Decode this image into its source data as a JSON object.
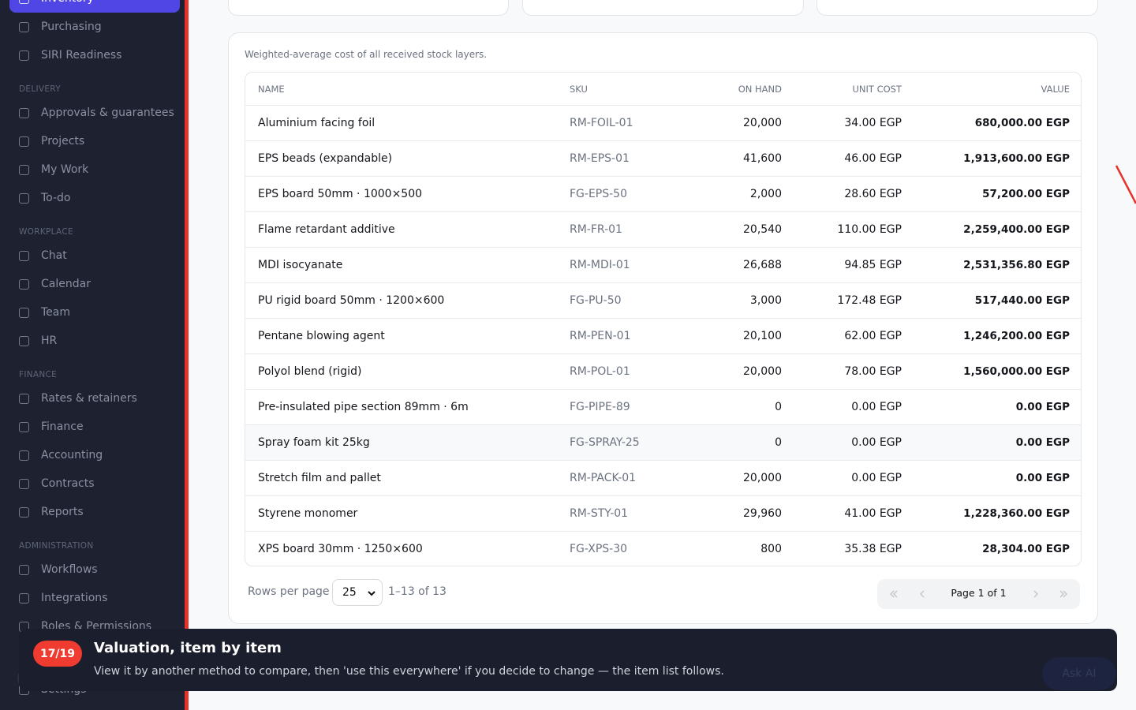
{
  "sidebar": {
    "top_items": [
      "Inventory",
      "Purchasing",
      "SIRI Readiness"
    ],
    "sections": [
      {
        "title": "DELIVERY",
        "items": [
          "Approvals & guarantees",
          "Projects",
          "My Work",
          "To-do"
        ]
      },
      {
        "title": "WORKPLACE",
        "items": [
          "Chat",
          "Calendar",
          "Team",
          "HR"
        ]
      },
      {
        "title": "FINANCE",
        "items": [
          "Rates & retainers",
          "Finance",
          "Accounting",
          "Contracts",
          "Reports"
        ]
      },
      {
        "title": "ADMINISTRATION",
        "items": [
          "Workflows",
          "Integrations",
          "Roles & Permissions"
        ]
      }
    ],
    "settings": "Settings"
  },
  "panel": {
    "caption": "Weighted-average cost of all received stock layers.",
    "table": {
      "headers": [
        "NAME",
        "SKU",
        "ON HAND",
        "UNIT COST",
        "VALUE"
      ],
      "rows": [
        [
          "Aluminium facing foil",
          "RM-FOIL-01",
          "20,000",
          "34.00 EGP",
          "680,000.00 EGP"
        ],
        [
          "EPS beads (expandable)",
          "RM-EPS-01",
          "41,600",
          "46.00 EGP",
          "1,913,600.00 EGP"
        ],
        [
          "EPS board 50mm · 1000×500",
          "FG-EPS-50",
          "2,000",
          "28.60 EGP",
          "57,200.00 EGP"
        ],
        [
          "Flame retardant additive",
          "RM-FR-01",
          "20,540",
          "110.00 EGP",
          "2,259,400.00 EGP"
        ],
        [
          "MDI isocyanate",
          "RM-MDI-01",
          "26,688",
          "94.85 EGP",
          "2,531,356.80 EGP"
        ],
        [
          "PU rigid board 50mm · 1200×600",
          "FG-PU-50",
          "3,000",
          "172.48 EGP",
          "517,440.00 EGP"
        ],
        [
          "Pentane blowing agent",
          "RM-PEN-01",
          "20,100",
          "62.00 EGP",
          "1,246,200.00 EGP"
        ],
        [
          "Polyol blend (rigid)",
          "RM-POL-01",
          "20,000",
          "78.00 EGP",
          "1,560,000.00 EGP"
        ],
        [
          "Pre-insulated pipe section 89mm · 6m",
          "FG-PIPE-89",
          "0",
          "0.00 EGP",
          "0.00 EGP"
        ],
        [
          "Spray foam kit 25kg",
          "FG-SPRAY-25",
          "0",
          "0.00 EGP",
          "0.00 EGP"
        ],
        [
          "Stretch film and pallet",
          "RM-PACK-01",
          "20,000",
          "0.00 EGP",
          "0.00 EGP"
        ],
        [
          "Styrene monomer",
          "RM-STY-01",
          "29,960",
          "41.00 EGP",
          "1,228,360.00 EGP"
        ],
        [
          "XPS board 30mm · 1250×600",
          "FG-XPS-30",
          "800",
          "35.38 EGP",
          "28,304.00 EGP"
        ]
      ]
    },
    "footer": {
      "rows_per_page_label": "Rows per page",
      "page_size": "25",
      "range": "1–13 of 13",
      "page": "Page 1 of 1"
    }
  },
  "tour": {
    "step": "17/19",
    "title": "Valuation, item by item",
    "text": "View it by another method to compare, then 'use this everywhere' if you decide to change — the item list follows."
  },
  "ask_ai": "Ask AI"
}
